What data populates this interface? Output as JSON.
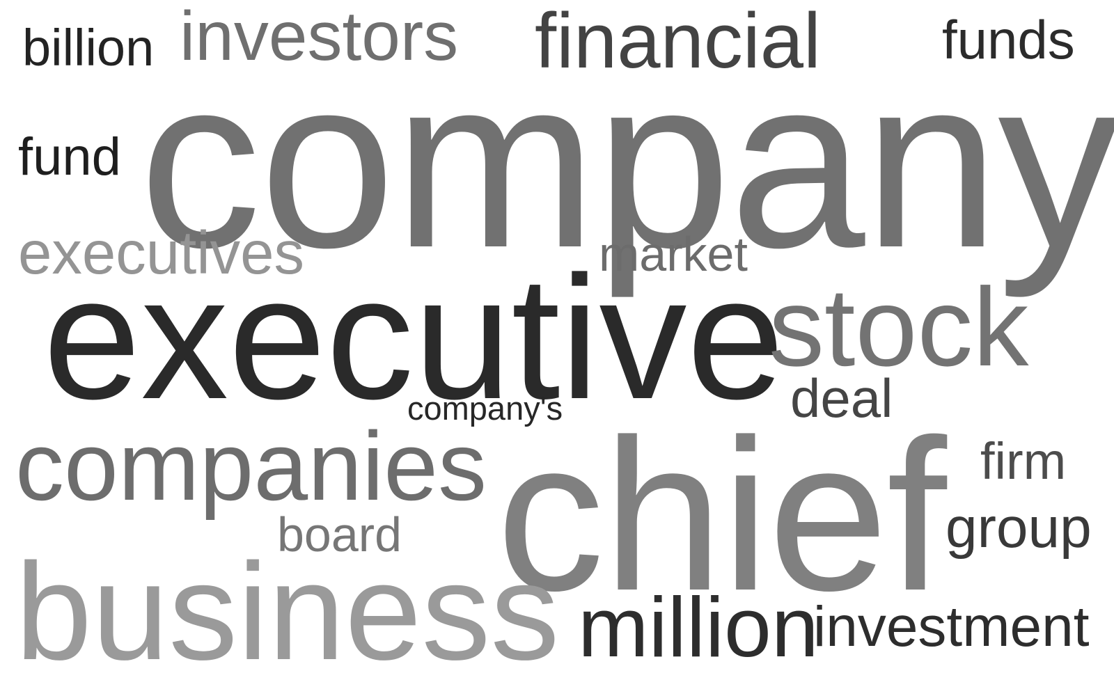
{
  "word_cloud": {
    "words": [
      {
        "text": "billion"
      },
      {
        "text": "investors"
      },
      {
        "text": "financial"
      },
      {
        "text": "funds"
      },
      {
        "text": "fund"
      },
      {
        "text": "company"
      },
      {
        "text": "executives"
      },
      {
        "text": "market"
      },
      {
        "text": "executive"
      },
      {
        "text": "stock"
      },
      {
        "text": "deal"
      },
      {
        "text": "company's"
      },
      {
        "text": "companies"
      },
      {
        "text": "chief"
      },
      {
        "text": "firm"
      },
      {
        "text": "board"
      },
      {
        "text": "group"
      },
      {
        "text": "business"
      },
      {
        "text": "million"
      },
      {
        "text": "investment"
      }
    ]
  }
}
